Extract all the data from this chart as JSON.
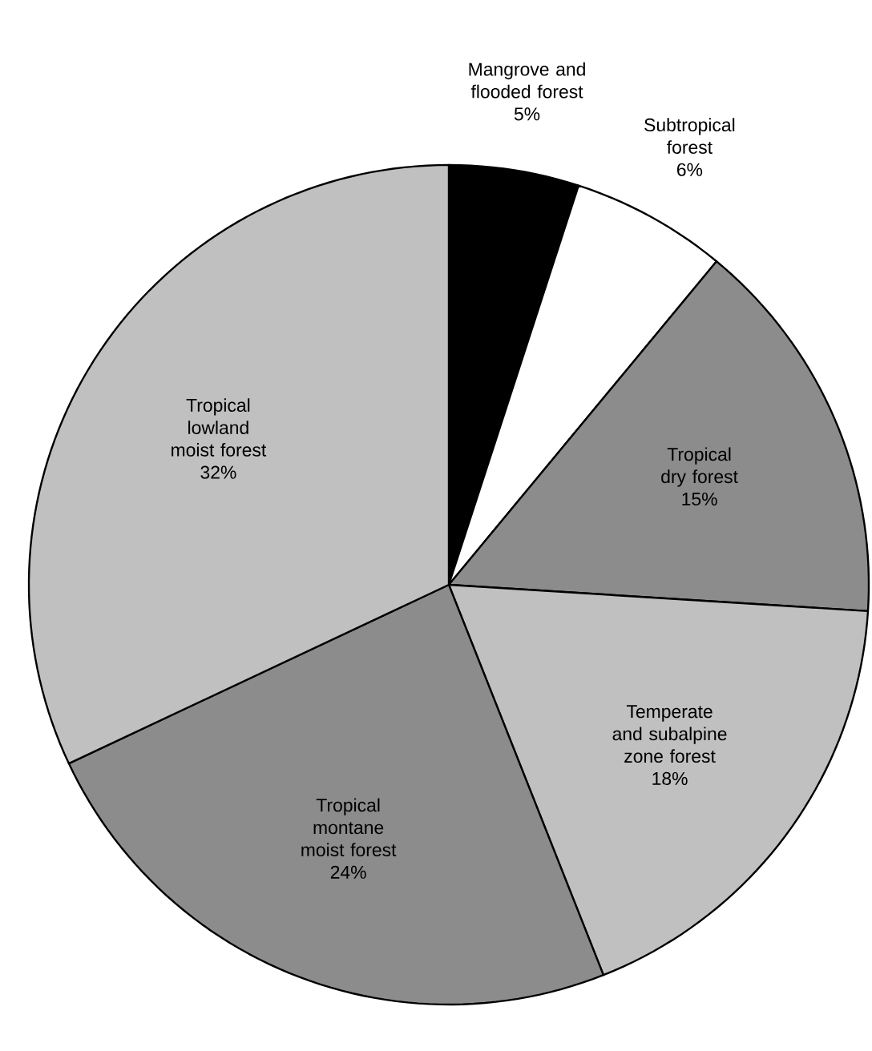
{
  "chart_data": {
    "type": "pie",
    "categories": [
      "Mangrove and flooded forest",
      "Subtropical forest",
      "Tropical dry forest",
      "Temperate and subalpine zone forest",
      "Tropical montane moist forest",
      "Tropical lowland moist forest"
    ],
    "values": [
      5,
      6,
      15,
      18,
      24,
      32
    ],
    "value_labels": [
      "5%",
      "6%",
      "15%",
      "18%",
      "24%",
      "32%"
    ],
    "colors": [
      "#000000",
      "#ffffff",
      "#8c8c8c",
      "#c0c0c0",
      "#8c8c8c",
      "#c0c0c0"
    ]
  }
}
